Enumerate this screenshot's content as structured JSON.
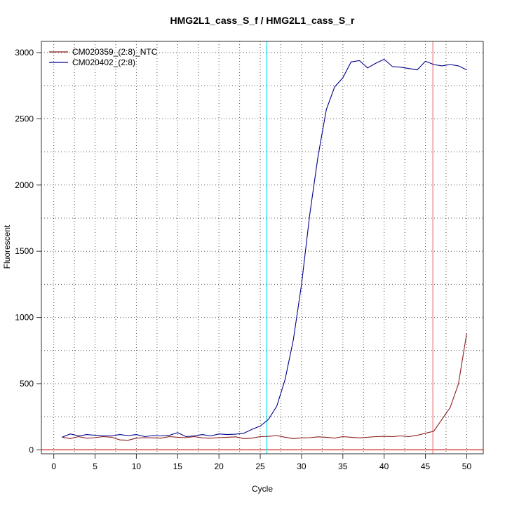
{
  "chart_data": {
    "type": "line",
    "title": "HMG2L1_cass_S_f / HMG2L1_cass_S_r",
    "xlabel": "Cycle",
    "ylabel": "Fluorescent",
    "xlim": [
      -1.5,
      52
    ],
    "ylim": [
      -30,
      3085
    ],
    "x_ticks": [
      0,
      5,
      10,
      15,
      20,
      25,
      30,
      35,
      40,
      45,
      50
    ],
    "y_ticks": [
      0,
      500,
      1000,
      1500,
      2000,
      2500,
      3000
    ],
    "grid": "dotted",
    "legend_position": "top-left",
    "threshold_y": 0,
    "reference_lines": [
      {
        "x": 25.8,
        "color": "#00E5EE"
      },
      {
        "x": 45.9,
        "color": "#E8777A"
      }
    ],
    "series": [
      {
        "name": "CM020359_(2:8)_NTC",
        "color": "#8B1A1A",
        "x": [
          1,
          2,
          3,
          4,
          5,
          6,
          7,
          8,
          9,
          10,
          11,
          12,
          13,
          14,
          15,
          16,
          17,
          18,
          19,
          20,
          21,
          22,
          23,
          24,
          25,
          26,
          27,
          28,
          29,
          30,
          31,
          32,
          33,
          34,
          35,
          36,
          37,
          38,
          39,
          40,
          41,
          42,
          43,
          44,
          45,
          46,
          47,
          48,
          49,
          50
        ],
        "values": [
          95,
          85,
          100,
          88,
          92,
          100,
          95,
          75,
          72,
          88,
          92,
          90,
          88,
          100,
          95,
          92,
          100,
          90,
          88,
          92,
          95,
          98,
          85,
          88,
          100,
          102,
          108,
          95,
          85,
          90,
          92,
          98,
          95,
          88,
          100,
          95,
          90,
          95,
          100,
          102,
          100,
          105,
          100,
          110,
          125,
          140,
          230,
          320,
          500,
          880
        ]
      },
      {
        "name": "CM020402_(2:8)",
        "color": "#00008B",
        "x": [
          1,
          2,
          3,
          4,
          5,
          6,
          7,
          8,
          9,
          10,
          11,
          12,
          13,
          14,
          15,
          16,
          17,
          18,
          19,
          20,
          21,
          22,
          23,
          24,
          25,
          26,
          27,
          28,
          29,
          30,
          31,
          32,
          33,
          34,
          35,
          36,
          37,
          38,
          39,
          40,
          41,
          42,
          43,
          44,
          45,
          46,
          47,
          48,
          49,
          50
        ],
        "values": [
          95,
          120,
          105,
          115,
          110,
          105,
          105,
          115,
          108,
          115,
          100,
          108,
          105,
          110,
          130,
          100,
          105,
          115,
          105,
          120,
          115,
          118,
          125,
          155,
          180,
          230,
          330,
          530,
          830,
          1250,
          1780,
          2220,
          2570,
          2740,
          2810,
          2930,
          2940,
          2885,
          2920,
          2950,
          2895,
          2890,
          2880,
          2870,
          2935,
          2910,
          2900,
          2910,
          2900,
          2870
        ]
      }
    ]
  }
}
